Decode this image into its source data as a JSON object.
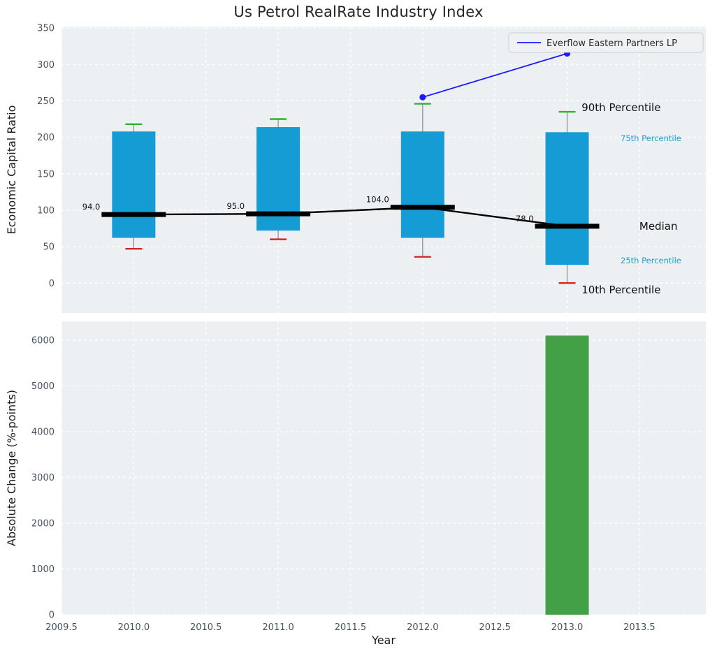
{
  "theme": {
    "panel_bg": "#edf0f3",
    "grid_color": "#ffffff",
    "tick_color": "#48525e",
    "axis_label_color": "#1a1a1a",
    "box_color": "#169cd4",
    "p90_cap_color": "#2bb52b",
    "p10_cap_color": "#d62728",
    "whisker_color": "#8a8a8a",
    "median_color": "#000000",
    "series_color": "#1a1aff",
    "bar_color": "#43a047",
    "legend_bg": "#f0f1f3",
    "legend_border": "#c9ced6",
    "percentile_label_color": "#1d9fd6"
  },
  "chart_data": [
    {
      "type": "boxplot",
      "title": "Us Petrol RealRate Industry Index",
      "ylabel": "Economic Capital Ratio",
      "ylim": [
        -41,
        352
      ],
      "yticks": [
        0,
        50,
        100,
        150,
        200,
        250,
        300,
        350
      ],
      "xlim": [
        2009.5,
        2013.96
      ],
      "grid": true,
      "legend_position": "upper right",
      "boxes": [
        {
          "year": 2010,
          "p10": 47,
          "p25": 62,
          "median": 94,
          "p75": 208,
          "p90": 218,
          "median_label": "94.0"
        },
        {
          "year": 2011,
          "p10": 60,
          "p25": 72,
          "median": 95,
          "p75": 214,
          "p90": 225,
          "median_label": "95.0"
        },
        {
          "year": 2012,
          "p10": 36,
          "p25": 62,
          "median": 104,
          "p75": 208,
          "p90": 246,
          "median_label": "104.0"
        },
        {
          "year": 2013,
          "p10": 0,
          "p25": 25,
          "median": 78,
          "p75": 207,
          "p90": 235,
          "median_label": "78.0"
        }
      ],
      "series": [
        {
          "name": "Everflow Eastern Partners LP",
          "x": [
            2012,
            2013
          ],
          "y": [
            255,
            315
          ],
          "color": "#1a1aff",
          "marker": "circle"
        }
      ],
      "annotations": [
        {
          "text": "90th Percentile",
          "x": 2013.1,
          "y": 236,
          "size": 15,
          "color": "#111111"
        },
        {
          "text": "75th Percentile",
          "x": 2013.37,
          "y": 195,
          "size": 11.5,
          "color": "#1d9fd6"
        },
        {
          "text": "Median",
          "x": 2013.5,
          "y": 73,
          "size": 15,
          "color": "#111111"
        },
        {
          "text": "25th Percentile",
          "x": 2013.37,
          "y": 27,
          "size": 11.5,
          "color": "#1d9fd6"
        },
        {
          "text": "10th Percentile",
          "x": 2013.1,
          "y": -14,
          "size": 15,
          "color": "#111111"
        }
      ]
    },
    {
      "type": "bar",
      "xlabel": "Year",
      "ylabel": "Absolute Change (%-points)",
      "x": [
        2013
      ],
      "values": [
        6100
      ],
      "bar_color": "#43a047",
      "ylim": [
        0,
        6412
      ],
      "yticks": [
        0,
        1000,
        2000,
        3000,
        4000,
        5000,
        6000
      ],
      "xticks": [
        2009.5,
        2010.0,
        2010.5,
        2011.0,
        2011.5,
        2012.0,
        2012.5,
        2013.0,
        2013.5
      ],
      "xtick_labels": [
        "2009.5",
        "2010.0",
        "2010.5",
        "2011.0",
        "2011.5",
        "2012.0",
        "2012.5",
        "2013.0",
        "2013.5"
      ],
      "grid": true
    }
  ]
}
